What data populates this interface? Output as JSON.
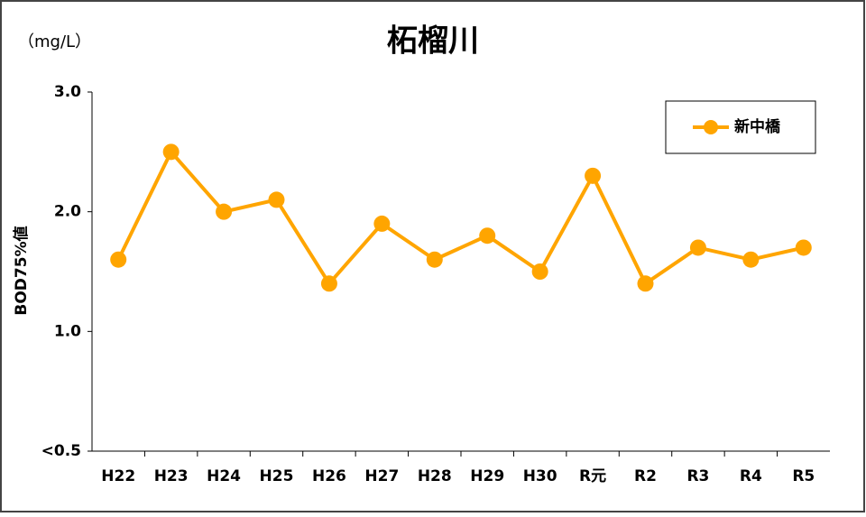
{
  "chart_data": {
    "type": "line",
    "title": "柘榴川",
    "unit_label": "（mg/L）",
    "y_label": "BOD75%値",
    "categories": [
      "H22",
      "H23",
      "H24",
      "H25",
      "H26",
      "H27",
      "H28",
      "H29",
      "H30",
      "R元",
      "R2",
      "R3",
      "R4",
      "R5"
    ],
    "series": [
      {
        "name": "新中橋",
        "color": "#ffa500",
        "values": [
          1.6,
          2.5,
          2.0,
          2.1,
          1.4,
          1.9,
          1.6,
          1.8,
          1.5,
          2.3,
          1.4,
          1.7,
          1.6,
          1.7
        ]
      }
    ],
    "ylim": [
      0.5,
      3.0
    ],
    "yticks": [
      {
        "value": 0.5,
        "label": "<0.5"
      },
      {
        "value": 1,
        "label": "1.0"
      },
      {
        "value": 2,
        "label": "2.0"
      },
      {
        "value": 3,
        "label": "3.0"
      }
    ],
    "legend": "upper right",
    "grid": false
  }
}
